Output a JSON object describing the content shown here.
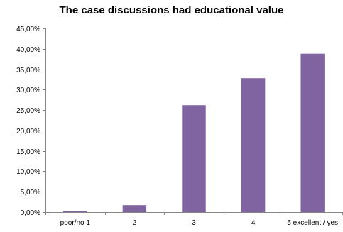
{
  "chart_data": {
    "type": "bar",
    "title": "The case discussions had educational value",
    "xlabel": "",
    "ylabel": "",
    "categories": [
      "poor/no 1",
      "2",
      "3",
      "4",
      "5 excellent / yes"
    ],
    "values": [
      0.3,
      1.7,
      26.2,
      32.8,
      38.8
    ],
    "ylim": [
      0,
      45
    ],
    "y_ticks": [
      0,
      5,
      10,
      15,
      20,
      25,
      30,
      35,
      40,
      45
    ],
    "y_tick_labels": [
      "0,00%",
      "5,00%",
      "10,00%",
      "15,00%",
      "20,00%",
      "25,00%",
      "30,00%",
      "35,00%",
      "40,00%",
      "45,00%"
    ],
    "grid": false,
    "legend": "none",
    "bar_color": "#8064a2",
    "axis_color": "#868686"
  }
}
